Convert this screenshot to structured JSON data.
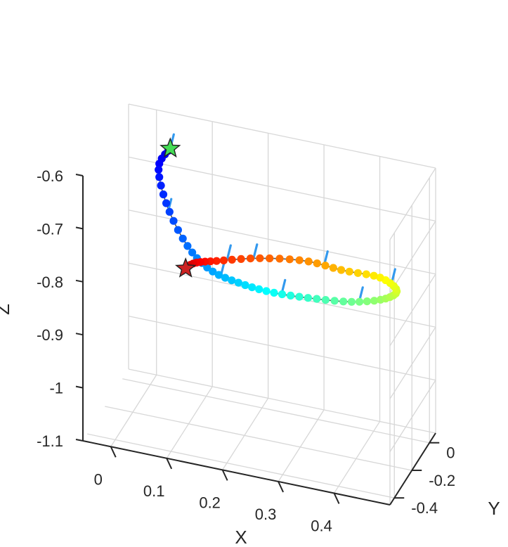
{
  "chart_data": {
    "type": "scatter",
    "projection": "3d",
    "title": "",
    "xlabel": "X",
    "ylabel": "Y",
    "zlabel": "Z",
    "xlim": [
      -0.05,
      0.5
    ],
    "ylim": [
      -0.45,
      0.07
    ],
    "zlim": [
      -1.1,
      -0.6
    ],
    "x_ticks": [
      0,
      0.1,
      0.2,
      0.3,
      0.4
    ],
    "x_tick_labels": [
      "0",
      "0.1",
      "0.2",
      "0.3",
      "0.4"
    ],
    "y_ticks": [
      0,
      -0.2,
      -0.4
    ],
    "y_tick_labels": [
      "0",
      "-0.2",
      "-0.4"
    ],
    "z_ticks": [
      -0.6,
      -0.7,
      -0.8,
      -0.9,
      -1,
      -1.1
    ],
    "z_tick_labels": [
      "-0.6",
      "-0.7",
      "-0.8",
      "-0.9",
      "-1",
      "-1.1"
    ],
    "grid": true,
    "colormap": "jet",
    "marker_color": "#3399ee",
    "start_marker": {
      "shape": "star",
      "color": "#44dd55"
    },
    "end_marker": {
      "shape": "star",
      "color": "#cc2222"
    },
    "trajectory_keyframes": [
      {
        "x": 0.058,
        "y": -0.142,
        "z": -0.605
      },
      {
        "x": 0.04,
        "y": -0.16,
        "z": -0.64
      },
      {
        "x": 0.06,
        "y": -0.19,
        "z": -0.7
      },
      {
        "x": 0.1,
        "y": -0.215,
        "z": -0.76
      },
      {
        "x": 0.145,
        "y": -0.238,
        "z": -0.79
      },
      {
        "x": 0.2,
        "y": -0.25,
        "z": -0.8
      },
      {
        "x": 0.26,
        "y": -0.255,
        "z": -0.803
      },
      {
        "x": 0.33,
        "y": -0.25,
        "z": -0.8
      },
      {
        "x": 0.4,
        "y": -0.235,
        "z": -0.795
      },
      {
        "x": 0.45,
        "y": -0.19,
        "z": -0.79
      },
      {
        "x": 0.46,
        "y": -0.12,
        "z": -0.79
      },
      {
        "x": 0.42,
        "y": -0.06,
        "z": -0.79
      },
      {
        "x": 0.35,
        "y": -0.03,
        "z": -0.8
      },
      {
        "x": 0.28,
        "y": -0.02,
        "z": -0.8
      },
      {
        "x": 0.2,
        "y": -0.03,
        "z": -0.81
      },
      {
        "x": 0.13,
        "y": -0.05,
        "z": -0.825
      },
      {
        "x": 0.09,
        "y": -0.06,
        "z": -0.835
      },
      {
        "x": 0.075,
        "y": -0.075,
        "z": -0.845
      }
    ],
    "orientation_markers": [
      {
        "x": 0.058,
        "y": -0.142,
        "z": -0.605
      },
      {
        "x": 0.062,
        "y": -0.196,
        "z": -0.712
      },
      {
        "x": 0.165,
        "y": -0.242,
        "z": -0.793
      },
      {
        "x": 0.275,
        "y": -0.254,
        "z": -0.803
      },
      {
        "x": 0.41,
        "y": -0.228,
        "z": -0.794
      },
      {
        "x": 0.445,
        "y": -0.082,
        "z": -0.79
      },
      {
        "x": 0.315,
        "y": -0.024,
        "z": -0.8
      },
      {
        "x": 0.19,
        "y": -0.033,
        "z": -0.812
      },
      {
        "x": 0.145,
        "y": -0.047,
        "z": -0.82
      }
    ],
    "point_count": 80
  }
}
